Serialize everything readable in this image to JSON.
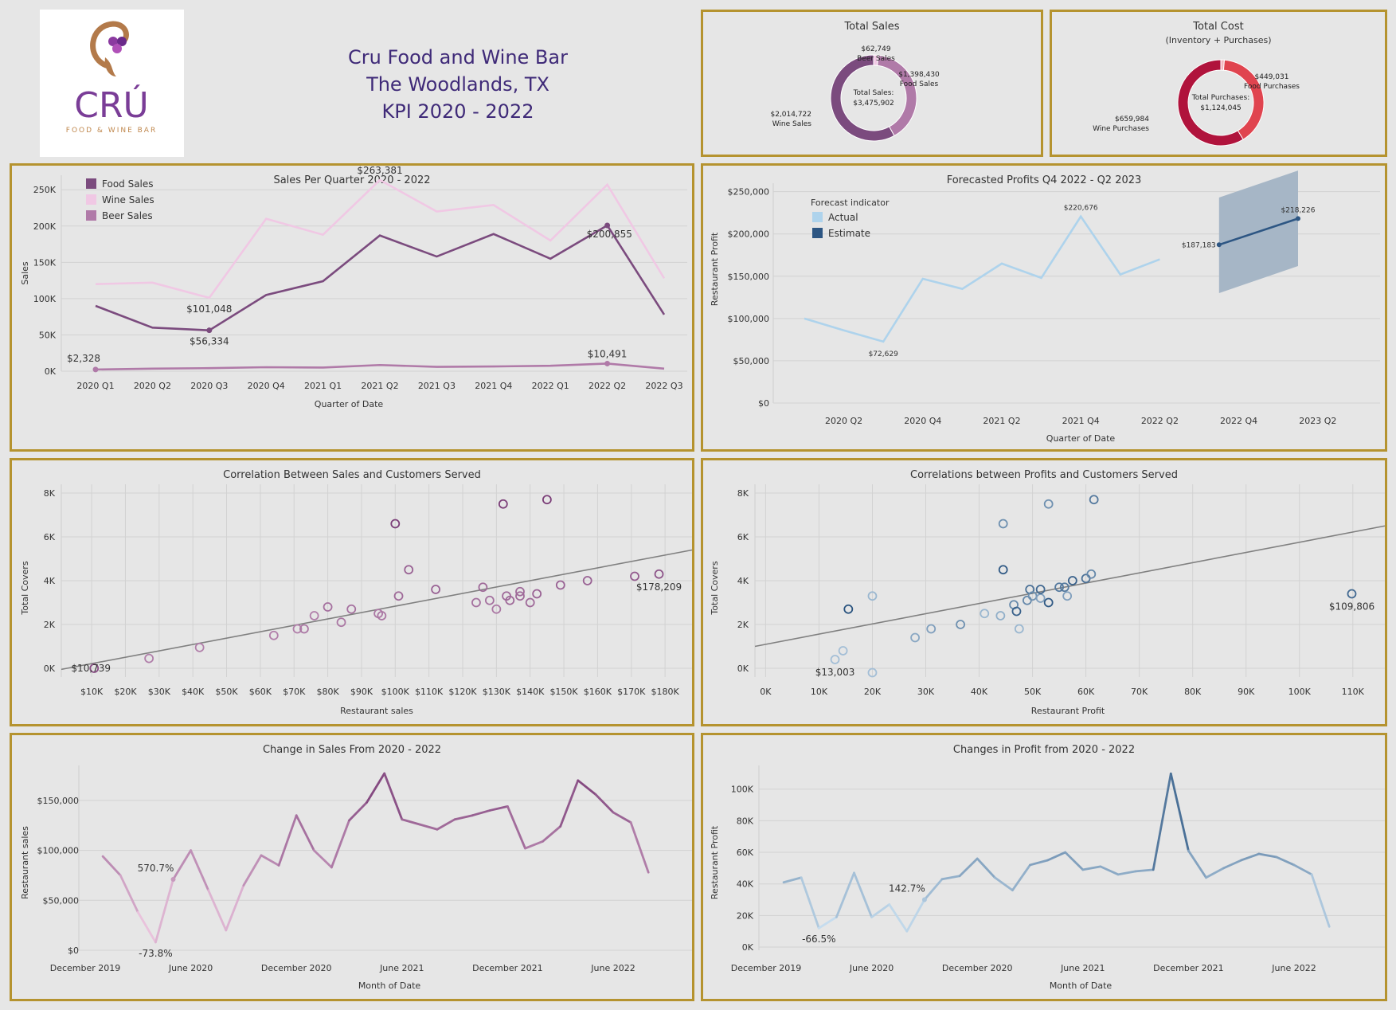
{
  "header": {
    "logo_text": "CRÚ",
    "logo_subtext": "FOOD & WINE BAR",
    "title_lines": [
      "Cru Food and Wine Bar",
      "The Woodlands, TX",
      "KPI 2020 - 2022"
    ]
  },
  "colors": {
    "border": "#b5932f",
    "food": "#7b4b7e",
    "wine": "#f0c8e4",
    "beer": "#b07aa8",
    "actual": "#aed3ec",
    "estimate": "#2d5683",
    "band": "#a6b6c6",
    "cost_food": "#e0444f",
    "cost_wine": "#b0133c"
  },
  "panels": {
    "total_sales": {
      "title": "Total Sales"
    },
    "total_cost": {
      "title": "Total Cost",
      "subtitle": "(Inventory + Purchases)"
    },
    "sales_quarter": {
      "title": "Sales Per Quarter 2020 - 2022"
    },
    "forecast": {
      "title": "Forecasted Profits Q4 2022 - Q2 2023"
    },
    "corr_sales": {
      "title": "Correlation Between Sales and Customers Served"
    },
    "corr_profit": {
      "title": "Correlations between Profits and Customers Served"
    },
    "change_sales": {
      "title": "Change in Sales From 2020 - 2022"
    },
    "change_profit": {
      "title": "Changes in Profit from 2020 - 2022"
    }
  },
  "chart_data": [
    {
      "id": "total_sales",
      "type": "pie",
      "title": "Total Sales",
      "center_label": [
        "Total Sales:",
        "$3,475,902"
      ],
      "slices": [
        {
          "name": "Beer Sales",
          "value": 62749,
          "label": "$62,749",
          "color": "#f0c8e4"
        },
        {
          "name": "Food Sales",
          "value": 1398430,
          "label": "$1,398,430",
          "color": "#b07aa8"
        },
        {
          "name": "Wine Sales",
          "value": 2014722,
          "label": "$2,014,722",
          "color": "#7b4b7e"
        }
      ]
    },
    {
      "id": "total_cost",
      "type": "pie",
      "title": "Total Cost",
      "subtitle": "(Inventory + Purchases)",
      "center_label": [
        "Total Purchases:",
        "$1,124,045"
      ],
      "slices": [
        {
          "name": "Other",
          "value": 15030,
          "label": "",
          "color": "#f4b8c0"
        },
        {
          "name": "Food Purchases",
          "value": 449031,
          "label": "$449,031",
          "color": "#e0444f"
        },
        {
          "name": "Wine Purchases",
          "value": 659984,
          "label": "$659,984",
          "color": "#b0133c"
        }
      ]
    },
    {
      "id": "sales_quarter",
      "type": "line",
      "title": "Sales Per Quarter 2020 - 2022",
      "xlabel": "Quarter of Date",
      "ylabel": "Sales",
      "categories": [
        "2020 Q1",
        "2020 Q2",
        "2020 Q3",
        "2020 Q4",
        "2021 Q1",
        "2021 Q2",
        "2021 Q3",
        "2021 Q4",
        "2022 Q1",
        "2022 Q2",
        "2022 Q3"
      ],
      "ylim": [
        0,
        270000
      ],
      "yticks": [
        0,
        50000,
        100000,
        150000,
        200000,
        250000
      ],
      "ytick_labels": [
        "0K",
        "50K",
        "100K",
        "150K",
        "200K",
        "250K"
      ],
      "legend": [
        "Food Sales",
        "Wine Sales",
        "Beer Sales"
      ],
      "series": [
        {
          "name": "Food Sales",
          "color": "#7b4b7e",
          "values": [
            90000,
            60000,
            56334,
            105000,
            124000,
            187000,
            158000,
            189000,
            155000,
            200855,
            78000
          ]
        },
        {
          "name": "Wine Sales",
          "color": "#f0c8e4",
          "values": [
            120000,
            122000,
            101048,
            210000,
            188000,
            263381,
            220000,
            229000,
            180000,
            257000,
            128000
          ]
        },
        {
          "name": "Beer Sales",
          "color": "#b07aa8",
          "values": [
            2328,
            3500,
            4200,
            5500,
            5000,
            8500,
            6000,
            6500,
            7500,
            10491,
            3500
          ]
        }
      ],
      "annotations": [
        {
          "text": "$263,381",
          "series": 1,
          "index": 5,
          "pos": "above"
        },
        {
          "text": "$101,048",
          "series": 1,
          "index": 2,
          "pos": "below"
        },
        {
          "text": "$56,334",
          "series": 0,
          "index": 2,
          "pos": "below",
          "marker": true
        },
        {
          "text": "$200,855",
          "series": 0,
          "index": 9,
          "pos": "right",
          "marker": true
        },
        {
          "text": "$2,328",
          "series": 2,
          "index": 0,
          "pos": "above-left",
          "marker": true
        },
        {
          "text": "$10,491",
          "series": 2,
          "index": 9,
          "pos": "above",
          "marker": true
        }
      ]
    },
    {
      "id": "forecast",
      "type": "line",
      "title": "Forecasted Profits Q4 2022 - Q2 2023",
      "xlabel": "Quarter of Date",
      "ylabel": "Restaurant Profit",
      "x_tick_labels": [
        "2020 Q2",
        "2020 Q4",
        "2021 Q2",
        "2021 Q4",
        "2022 Q2",
        "2022 Q4",
        "2023 Q2"
      ],
      "ylim": [
        0,
        260000
      ],
      "yticks": [
        0,
        50000,
        100000,
        150000,
        200000,
        250000
      ],
      "ytick_labels": [
        "$0",
        "$50,000",
        "$100,000",
        "$150,000",
        "$200,000",
        "$250,000"
      ],
      "legend_title": "Forecast indicator",
      "legend": [
        "Actual",
        "Estimate"
      ],
      "series": [
        {
          "name": "Actual",
          "color": "#aed3ec",
          "x": [
            0,
            1,
            2,
            3,
            4,
            5,
            6,
            7,
            8,
            9,
            10
          ],
          "values": [
            100000,
            86000,
            72629,
            147000,
            135000,
            165000,
            148000,
            220676,
            152000,
            170000,
            null
          ]
        },
        {
          "name": "Estimate",
          "color": "#2d5683",
          "x": [
            10.5,
            12.5
          ],
          "values": [
            187183,
            218226
          ]
        }
      ],
      "band": {
        "x": [
          10.5,
          12.5
        ],
        "lower": [
          130000,
          162000
        ],
        "upper": [
          243000,
          275000
        ]
      },
      "annotations": [
        {
          "text": "$72,629",
          "x": 2,
          "y": 72629,
          "pos": "below"
        },
        {
          "text": "$220,676",
          "x": 7,
          "y": 220676,
          "pos": "above"
        },
        {
          "text": "$187,183",
          "x": 10.5,
          "y": 187183,
          "pos": "left"
        },
        {
          "text": "$218,226",
          "x": 12.5,
          "y": 218226,
          "pos": "above"
        }
      ]
    },
    {
      "id": "corr_sales",
      "type": "scatter",
      "title": "Correlation Between Sales and Customers Served",
      "xlabel": "Restaurant sales",
      "ylabel": "Total Covers",
      "xlim": [
        1000,
        188000
      ],
      "ylim": [
        -400,
        8400
      ],
      "xticks": [
        10000,
        20000,
        30000,
        40000,
        50000,
        60000,
        70000,
        80000,
        90000,
        100000,
        110000,
        120000,
        130000,
        140000,
        150000,
        160000,
        170000,
        180000
      ],
      "xtick_labels": [
        "$10K",
        "$20K",
        "$30K",
        "$40K",
        "$50K",
        "$60K",
        "$70K",
        "$80K",
        "$90K",
        "$100K",
        "$110K",
        "$120K",
        "$130K",
        "$140K",
        "$150K",
        "$160K",
        "$170K",
        "$180K"
      ],
      "yticks": [
        0,
        2000,
        4000,
        6000,
        8000
      ],
      "ytick_labels": [
        "0K",
        "2K",
        "4K",
        "6K",
        "8K"
      ],
      "points": [
        [
          10739,
          0,
          0.9
        ],
        [
          27000,
          450,
          0.55
        ],
        [
          42000,
          950,
          0.55
        ],
        [
          64000,
          1500,
          0.55
        ],
        [
          71000,
          1800,
          0.55
        ],
        [
          73000,
          1800,
          0.6
        ],
        [
          76000,
          2400,
          0.55
        ],
        [
          80000,
          2800,
          0.65
        ],
        [
          84000,
          2100,
          0.6
        ],
        [
          87000,
          2700,
          0.65
        ],
        [
          95000,
          2500,
          0.6
        ],
        [
          96000,
          2400,
          0.6
        ],
        [
          100000,
          6600,
          1.0
        ],
        [
          101000,
          3300,
          0.7
        ],
        [
          104000,
          4500,
          0.75
        ],
        [
          112000,
          3600,
          0.75
        ],
        [
          124000,
          3000,
          0.65
        ],
        [
          126000,
          3700,
          0.7
        ],
        [
          128000,
          3100,
          0.65
        ],
        [
          130000,
          2700,
          0.6
        ],
        [
          132000,
          7500,
          1.0
        ],
        [
          133000,
          3300,
          0.7
        ],
        [
          134000,
          3100,
          0.7
        ],
        [
          137000,
          3500,
          0.7
        ],
        [
          137000,
          3300,
          0.7
        ],
        [
          140000,
          3000,
          0.7
        ],
        [
          142000,
          3400,
          0.75
        ],
        [
          145000,
          7700,
          1.0
        ],
        [
          149000,
          3800,
          0.75
        ],
        [
          157000,
          4000,
          0.75
        ],
        [
          171000,
          4200,
          0.8
        ],
        [
          178209,
          4300,
          0.85
        ]
      ],
      "trend": {
        "x": [
          1000,
          188000
        ],
        "y": [
          -50,
          5400
        ]
      },
      "annotations": [
        {
          "text": "$10,739",
          "x": 10739,
          "y": 0,
          "pos": "left"
        },
        {
          "text": "$178,209",
          "x": 178209,
          "y": 4300,
          "pos": "below"
        }
      ]
    },
    {
      "id": "corr_profit",
      "type": "scatter",
      "title": "Correlations between Profits and Customers Served",
      "xlabel": "Restaurant Profit",
      "ylabel": "Total Covers",
      "xlim": [
        -2000,
        116000
      ],
      "ylim": [
        -400,
        8400
      ],
      "xticks": [
        0,
        10000,
        20000,
        30000,
        40000,
        50000,
        60000,
        70000,
        80000,
        90000,
        100000,
        110000
      ],
      "xtick_labels": [
        "0K",
        "10K",
        "20K",
        "30K",
        "40K",
        "50K",
        "60K",
        "70K",
        "80K",
        "90K",
        "100K",
        "110K"
      ],
      "yticks": [
        0,
        2000,
        4000,
        6000,
        8000
      ],
      "ytick_labels": [
        "0K",
        "2K",
        "4K",
        "6K",
        "8K"
      ],
      "points": [
        [
          13003,
          400,
          0.25
        ],
        [
          14500,
          800,
          0.25
        ],
        [
          15500,
          2700,
          0.95
        ],
        [
          20000,
          3300,
          0.3
        ],
        [
          20000,
          -200,
          0.25
        ],
        [
          28000,
          1400,
          0.4
        ],
        [
          31000,
          1800,
          0.45
        ],
        [
          36500,
          2000,
          0.55
        ],
        [
          41000,
          2500,
          0.3
        ],
        [
          44000,
          2400,
          0.35
        ],
        [
          44500,
          6600,
          0.55
        ],
        [
          44500,
          4500,
          0.9
        ],
        [
          46500,
          2900,
          0.6
        ],
        [
          47000,
          2600,
          0.85
        ],
        [
          47500,
          1800,
          0.3
        ],
        [
          49000,
          3100,
          0.6
        ],
        [
          49500,
          3600,
          0.75
        ],
        [
          50000,
          3300,
          0.55
        ],
        [
          51500,
          3200,
          0.45
        ],
        [
          51500,
          3600,
          0.8
        ],
        [
          53000,
          7500,
          0.55
        ],
        [
          53000,
          3000,
          0.9
        ],
        [
          55000,
          3700,
          0.7
        ],
        [
          56000,
          3700,
          0.7
        ],
        [
          56500,
          3300,
          0.45
        ],
        [
          57500,
          4000,
          0.85
        ],
        [
          60000,
          4100,
          0.75
        ],
        [
          61000,
          4300,
          0.6
        ],
        [
          61500,
          7700,
          0.7
        ],
        [
          109806,
          3400,
          0.8
        ]
      ],
      "trend": {
        "x": [
          -2000,
          116000
        ],
        "y": [
          1000,
          6500
        ]
      },
      "annotations": [
        {
          "text": "$13,003",
          "x": 13003,
          "y": 400,
          "pos": "below"
        },
        {
          "text": "$109,806",
          "x": 109806,
          "y": 3400,
          "pos": "below"
        }
      ]
    },
    {
      "id": "change_sales",
      "type": "line",
      "title": "Change in Sales From 2020 - 2022",
      "xlabel": "Month of Date",
      "ylabel": "Restaurant sales",
      "x_tick_labels": [
        "December 2019",
        "June 2020",
        "December 2020",
        "June 2021",
        "December 2021",
        "June 2022"
      ],
      "x_tick_positions": [
        0,
        6,
        12,
        18,
        24,
        30
      ],
      "ylim": [
        0,
        185000
      ],
      "yticks": [
        0,
        50000,
        100000,
        150000
      ],
      "ytick_labels": [
        "$0",
        "$50,000",
        "$100,000",
        "$150,000"
      ],
      "values": [
        94000,
        75000,
        38000,
        8000,
        71000,
        100000,
        60000,
        20000,
        65000,
        95000,
        85000,
        135000,
        100000,
        83000,
        130000,
        148000,
        177000,
        131000,
        126000,
        121000,
        131000,
        135000,
        140000,
        144000,
        102000,
        109000,
        124000,
        170000,
        156000,
        138000,
        128000,
        78000
      ],
      "x_start": 1,
      "annotations": [
        {
          "text": "570.7%",
          "index": 4,
          "pos": "above-left"
        },
        {
          "text": "-73.8%",
          "index": 3,
          "pos": "below"
        }
      ]
    },
    {
      "id": "change_profit",
      "type": "line",
      "title": "Changes in Profit from 2020 - 2022",
      "xlabel": "Month of Date",
      "ylabel": "Restaurant Profit",
      "x_tick_labels": [
        "December 2019",
        "June 2020",
        "December 2020",
        "June 2021",
        "December 2021",
        "June 2022"
      ],
      "x_tick_positions": [
        0,
        6,
        12,
        18,
        24,
        30
      ],
      "ylim": [
        -2000,
        115000
      ],
      "yticks": [
        0,
        20000,
        40000,
        60000,
        80000,
        100000
      ],
      "ytick_labels": [
        "0K",
        "20K",
        "40K",
        "60K",
        "80K",
        "100K"
      ],
      "values": [
        41000,
        44000,
        12000,
        19000,
        47000,
        19000,
        27000,
        10000,
        30000,
        43000,
        45000,
        56000,
        44000,
        36000,
        52000,
        55000,
        60000,
        49000,
        51000,
        46000,
        48000,
        49000,
        109806,
        61000,
        44000,
        50000,
        55000,
        59000,
        57000,
        52000,
        46000,
        13000
      ],
      "x_start": 1,
      "annotations": [
        {
          "text": "142.7%",
          "index": 8,
          "pos": "above-left"
        },
        {
          "text": "-66.5%",
          "index": 2,
          "pos": "below"
        }
      ]
    }
  ]
}
